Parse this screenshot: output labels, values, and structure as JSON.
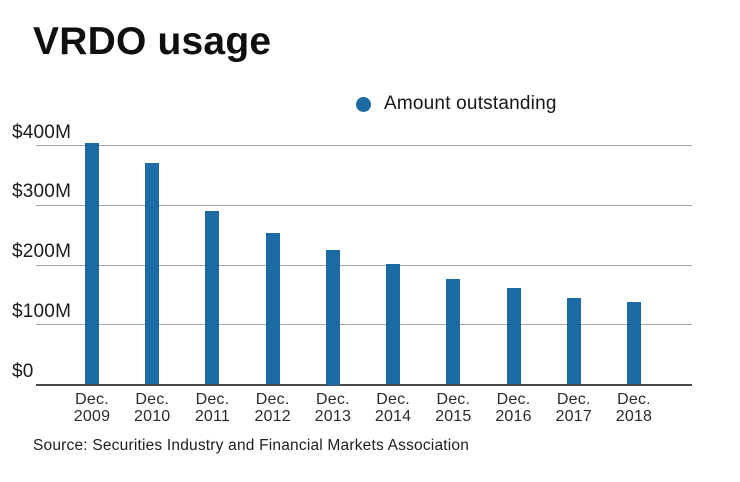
{
  "title": "VRDO usage",
  "legend": {
    "label": "Amount outstanding",
    "marker_color": "#1d6ba4"
  },
  "source": "Source: Securities Industry and Financial Markets Association",
  "colors": {
    "bar": "#1d6ba4",
    "gridline": "#a3a3a3",
    "axis": "#4a4a4a",
    "text": "#161616"
  },
  "chart_data": {
    "type": "bar",
    "title": "VRDO usage",
    "series": [
      {
        "name": "Amount outstanding",
        "values": [
          405,
          370,
          291,
          253,
          225,
          201,
          176,
          162,
          145,
          138
        ]
      }
    ],
    "categories": [
      "Dec. 2009",
      "Dec. 2010",
      "Dec. 2011",
      "Dec. 2012",
      "Dec. 2013",
      "Dec. 2014",
      "Dec. 2015",
      "Dec. 2016",
      "Dec. 2017",
      "Dec. 2018"
    ],
    "xlabel": "",
    "ylabel": "",
    "y_ticks": [
      0,
      100,
      200,
      300,
      400
    ],
    "y_tick_labels": [
      "$0",
      "$100M",
      "$200M",
      "$300M",
      "$400M"
    ],
    "ylim": [
      0,
      420
    ],
    "unit": "millions USD",
    "grid": true,
    "legend_position": "top-center",
    "bar_color": "#1d6ba4"
  }
}
